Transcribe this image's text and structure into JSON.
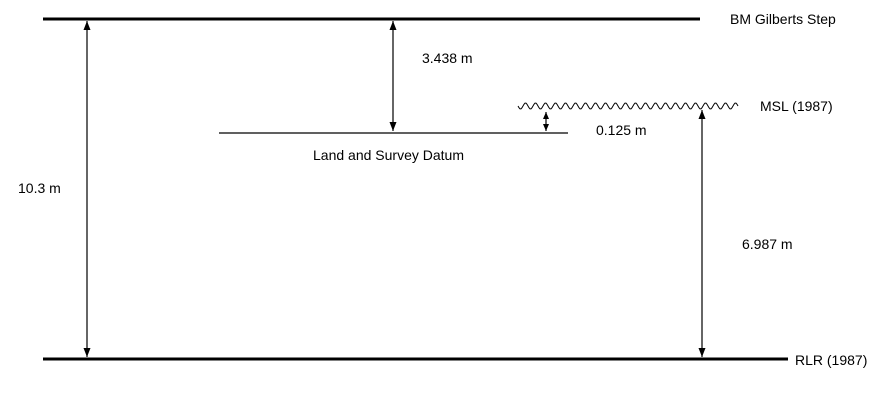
{
  "levels": {
    "bm": "BM  Gilberts Step",
    "msl": "MSL (1987)",
    "rlr": "RLR (1987)",
    "land_datum": "Land and Survey Datum"
  },
  "measurements": {
    "bm_to_rlr": "10.3 m",
    "bm_to_land_datum": "3.438 m",
    "land_datum_to_msl": "0.125 m",
    "msl_to_rlr": "6.987 m"
  }
}
